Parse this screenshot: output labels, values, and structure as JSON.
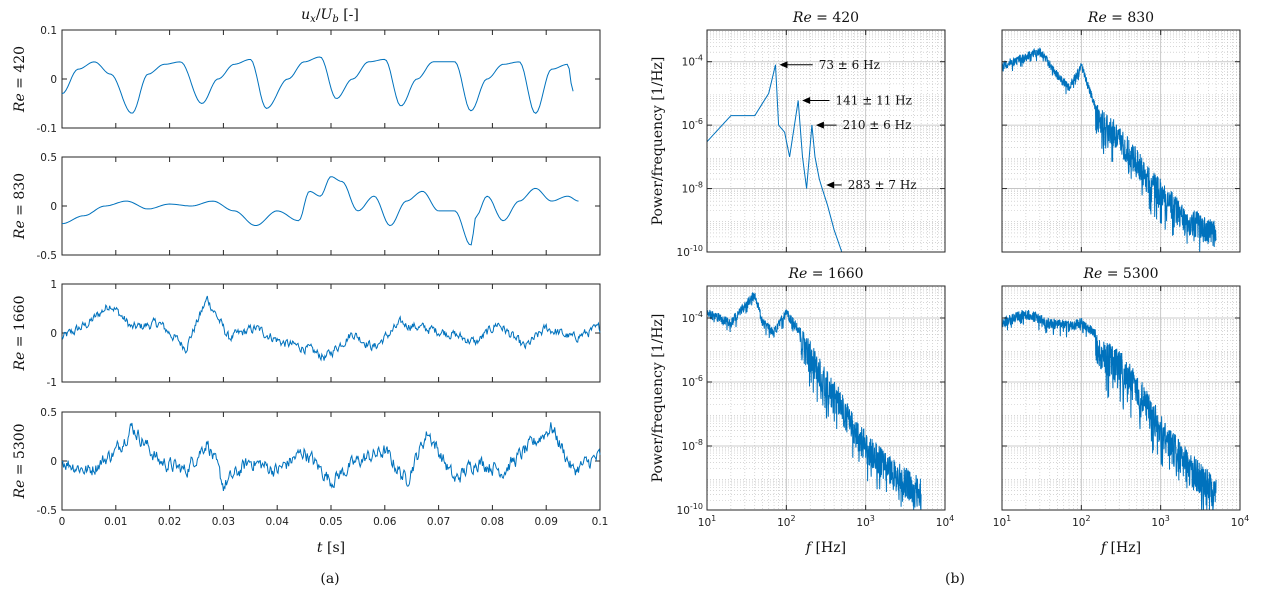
{
  "figure": {
    "left_title": "u_x/U_b [-]",
    "left_xlabel": "t [s]",
    "right_xlabel": "f [Hz]",
    "right_ylabel": "Power/frequency [1/Hz]",
    "label_a": "(a)",
    "label_b": "(b)"
  },
  "colors": {
    "line": "#0072BD",
    "axis": "#262626",
    "grid": "#bdbdbd"
  },
  "chart_data": [
    {
      "type": "line",
      "panel": "time-series",
      "ylabel": "Re = 420",
      "xlim": [
        0,
        0.1
      ],
      "ylim": [
        -0.1,
        0.1
      ],
      "yticks": [
        "-0.1",
        "0",
        "0.1"
      ],
      "xticks": [],
      "x": [
        0,
        0.003,
        0.006,
        0.009,
        0.013,
        0.016,
        0.019,
        0.022,
        0.026,
        0.029,
        0.032,
        0.035,
        0.038,
        0.042,
        0.045,
        0.048,
        0.051,
        0.054,
        0.057,
        0.06,
        0.063,
        0.066,
        0.069,
        0.073,
        0.076,
        0.079,
        0.082,
        0.085,
        0.088,
        0.091,
        0.094,
        0.095
      ],
      "y": [
        -0.03,
        0.02,
        0.035,
        0.01,
        -0.07,
        0.01,
        0.03,
        0.035,
        -0.05,
        0.0,
        0.03,
        0.04,
        -0.06,
        0.0,
        0.035,
        0.045,
        -0.04,
        0.0,
        0.035,
        0.04,
        -0.055,
        0.0,
        0.035,
        0.035,
        -0.065,
        0.0,
        0.03,
        0.035,
        -0.07,
        0.02,
        0.03,
        -0.025
      ]
    },
    {
      "type": "line",
      "panel": "time-series",
      "ylabel": "Re = 830",
      "xlim": [
        0,
        0.1
      ],
      "ylim": [
        -0.5,
        0.5
      ],
      "yticks": [
        "-0.5",
        "0",
        "0.5"
      ],
      "xticks": [],
      "x": [
        0,
        0.004,
        0.008,
        0.012,
        0.016,
        0.02,
        0.024,
        0.028,
        0.032,
        0.036,
        0.04,
        0.044,
        0.046,
        0.048,
        0.05,
        0.052,
        0.055,
        0.058,
        0.061,
        0.064,
        0.067,
        0.07,
        0.073,
        0.076,
        0.077,
        0.079,
        0.082,
        0.085,
        0.088,
        0.091,
        0.094,
        0.096
      ],
      "y": [
        -0.18,
        -0.1,
        0.0,
        0.05,
        -0.03,
        0.02,
        0.0,
        0.05,
        -0.05,
        -0.2,
        -0.05,
        -0.15,
        0.15,
        0.1,
        0.3,
        0.25,
        -0.05,
        0.1,
        -0.2,
        0.05,
        0.15,
        -0.05,
        -0.05,
        -0.4,
        -0.1,
        0.1,
        -0.15,
        0.05,
        0.18,
        0.05,
        0.1,
        0.05
      ]
    },
    {
      "type": "line",
      "panel": "time-series",
      "ylabel": "Re = 1660",
      "xlim": [
        0,
        0.1
      ],
      "ylim": [
        -1,
        1
      ],
      "yticks": [
        "-1",
        "0",
        "1"
      ],
      "xticks": [],
      "noise": 0.18,
      "x": [
        0,
        0.005,
        0.009,
        0.013,
        0.018,
        0.023,
        0.027,
        0.031,
        0.036,
        0.041,
        0.045,
        0.049,
        0.054,
        0.058,
        0.063,
        0.067,
        0.072,
        0.077,
        0.081,
        0.086,
        0.09,
        0.095,
        0.1
      ],
      "y": [
        -0.1,
        0.2,
        0.6,
        0.1,
        0.2,
        -0.3,
        0.7,
        -0.1,
        0.1,
        -0.2,
        -0.3,
        -0.5,
        0.0,
        -0.3,
        0.2,
        0.1,
        0.0,
        -0.2,
        0.2,
        -0.3,
        0.1,
        -0.1,
        0.1
      ]
    },
    {
      "type": "line",
      "panel": "time-series",
      "ylabel": "Re = 5300",
      "xlim": [
        0,
        0.1
      ],
      "ylim": [
        -0.5,
        0.5
      ],
      "yticks": [
        "-0.5",
        "0",
        "0.5"
      ],
      "xticks": [
        "0",
        "0.01",
        "0.02",
        "0.03",
        "0.04",
        "0.05",
        "0.06",
        "0.07",
        "0.08",
        "0.09",
        "0.1"
      ],
      "noise": 0.14,
      "x": [
        0,
        0.005,
        0.01,
        0.013,
        0.018,
        0.023,
        0.027,
        0.03,
        0.035,
        0.04,
        0.045,
        0.05,
        0.055,
        0.06,
        0.064,
        0.068,
        0.073,
        0.077,
        0.082,
        0.086,
        0.091,
        0.095,
        0.1
      ],
      "y": [
        0.0,
        -0.1,
        0.1,
        0.35,
        0.0,
        -0.1,
        0.2,
        -0.25,
        0.0,
        -0.1,
        0.1,
        -0.2,
        0.0,
        0.1,
        -0.2,
        0.3,
        -0.2,
        0.0,
        -0.1,
        0.1,
        0.35,
        -0.1,
        0.05
      ]
    },
    {
      "type": "line",
      "panel": "spectrum",
      "title": "Re = 420",
      "xscale": "log",
      "yscale": "log",
      "xlim": [
        10,
        10000
      ],
      "ylim": [
        1e-10,
        0.001
      ],
      "yticks": [
        "10^-10",
        "10^-8",
        "10^-6",
        "10^-4"
      ],
      "xticks": [],
      "x": [
        10,
        20,
        40,
        60,
        73,
        80,
        95,
        110,
        141,
        160,
        180,
        210,
        230,
        260,
        283,
        330,
        400,
        500,
        600
      ],
      "y": [
        3e-07,
        2e-06,
        2e-06,
        1e-05,
        8e-05,
        1e-06,
        6e-07,
        1e-07,
        6e-06,
        1e-07,
        1e-08,
        1e-06,
        1e-07,
        2e-08,
        1e-08,
        3e-09,
        5e-10,
        1e-10,
        5e-11
      ],
      "annotations": [
        {
          "text": "73 ± 6 Hz",
          "x": 73,
          "y": 8e-05,
          "tx": 215,
          "ty": 8e-05
        },
        {
          "text": "141 ± 11 Hz",
          "x": 141,
          "y": 6e-06,
          "tx": 350,
          "ty": 6e-06
        },
        {
          "text": "210 ± 6 Hz",
          "x": 210,
          "y": 1e-06,
          "tx": 430,
          "ty": 1e-06
        },
        {
          "text": "283 ± 7 Hz",
          "x": 283,
          "y": 1.3e-08,
          "tx": 500,
          "ty": 1.3e-08
        }
      ]
    },
    {
      "type": "line",
      "panel": "spectrum",
      "title": "Re = 830",
      "xscale": "log",
      "yscale": "log",
      "xlim": [
        10,
        10000
      ],
      "ylim": [
        1e-10,
        0.001
      ],
      "yticks": [],
      "xticks": [],
      "noise_decades": 0.9,
      "x": [
        10,
        30,
        50,
        70,
        100,
        150,
        200,
        300,
        500,
        700,
        1000,
        2000,
        5000
      ],
      "y": [
        0.0001,
        0.0003,
        5e-05,
        2e-05,
        0.0001,
        5e-06,
        3e-06,
        1e-06,
        2e-07,
        5e-08,
        2e-08,
        3e-09,
        1e-09
      ]
    },
    {
      "type": "line",
      "panel": "spectrum",
      "title": "Re = 1660",
      "xscale": "log",
      "yscale": "log",
      "xlim": [
        10,
        10000
      ],
      "ylim": [
        1e-10,
        0.001
      ],
      "yticks": [
        "10^-10",
        "10^-8",
        "10^-6",
        "10^-4"
      ],
      "xticks": [
        "10^1",
        "10^2",
        "10^3",
        "10^4"
      ],
      "noise_decades": 1.0,
      "x": [
        10,
        20,
        40,
        50,
        70,
        100,
        150,
        200,
        300,
        500,
        700,
        1000,
        2000,
        5000
      ],
      "y": [
        0.0002,
        0.0001,
        0.0008,
        0.0001,
        5e-05,
        0.0002,
        5e-05,
        2e-05,
        3e-06,
        5e-07,
        1e-07,
        3e-08,
        5e-09,
        1e-09
      ]
    },
    {
      "type": "line",
      "panel": "spectrum",
      "title": "Re = 5300",
      "xscale": "log",
      "yscale": "log",
      "xlim": [
        10,
        10000
      ],
      "ylim": [
        1e-10,
        0.001
      ],
      "yticks": [],
      "xticks": [
        "10^1",
        "10^2",
        "10^3",
        "10^4"
      ],
      "noise_decades": 1.1,
      "x": [
        10,
        20,
        40,
        70,
        100,
        150,
        200,
        300,
        500,
        700,
        1000,
        2000,
        5000
      ],
      "y": [
        0.0001,
        0.0002,
        0.0001,
        8e-05,
        0.0001,
        5e-05,
        2e-05,
        1e-05,
        2e-06,
        5e-07,
        1e-07,
        1e-08,
        1e-09
      ]
    }
  ]
}
